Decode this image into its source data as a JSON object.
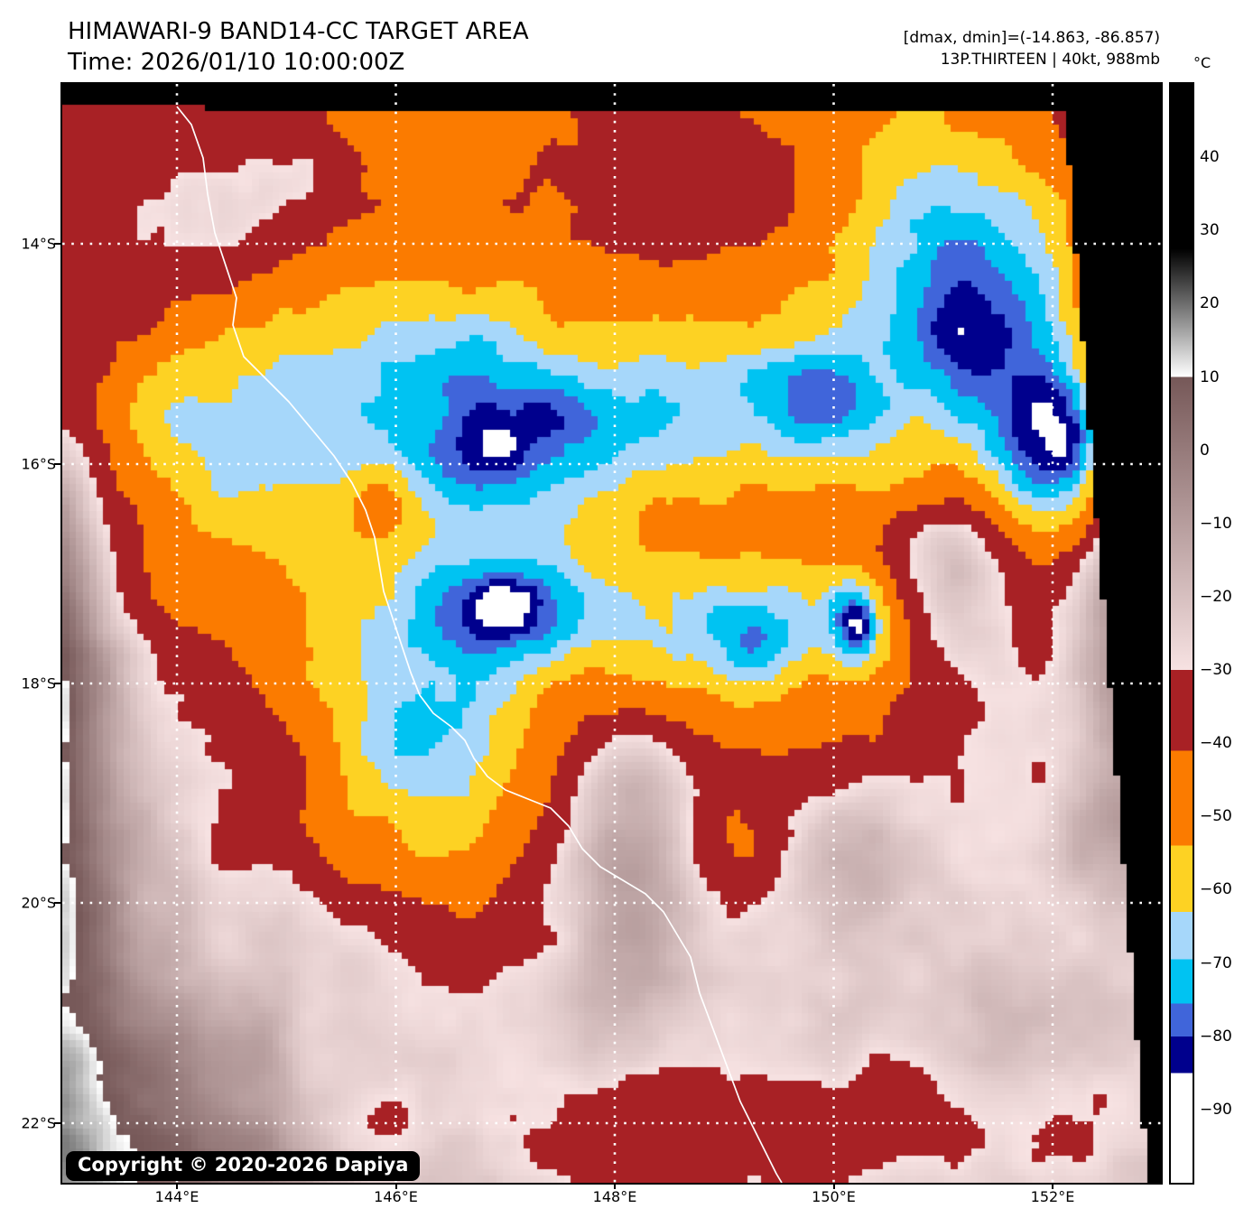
{
  "header": {
    "title": "HIMAWARI-9 BAND14-CC TARGET AREA",
    "subtitle": "Time: 2026/01/10 10:00:00Z",
    "annotation_line1": "[dmax, dmin]=(-14.863, -86.857)",
    "annotation_line2": "13P.THIRTEEN | 40kt, 988mb"
  },
  "colorbar": {
    "unit": "°C",
    "vmax": 50,
    "vmin": -100,
    "tick_values": [
      40,
      30,
      20,
      10,
      0,
      -10,
      -20,
      -30,
      -40,
      -50,
      -60,
      -70,
      -80,
      -90
    ],
    "tick_labels": [
      "40",
      "30",
      "20",
      "10",
      "0",
      "−10",
      "−20",
      "−30",
      "−40",
      "−50",
      "−60",
      "−70",
      "−80",
      "−90"
    ],
    "segments": [
      {
        "from": 50,
        "to": 27.5,
        "color": "#000000",
        "label": "hot-black"
      },
      {
        "from": 27.5,
        "to": 10,
        "color_start": "#000000",
        "color_end": "#ffffff",
        "label": "gray-ramp"
      },
      {
        "from": 10,
        "to": -30,
        "color_start": "#765858",
        "color_end": "#f7e2e2",
        "label": "mauve-ramp"
      },
      {
        "from": -30,
        "to": -41,
        "color": "#a82125",
        "label": "dark-red"
      },
      {
        "from": -41,
        "to": -54,
        "color": "#fb7b00",
        "label": "orange"
      },
      {
        "from": -54,
        "to": -63,
        "color": "#fdd223",
        "label": "yellow"
      },
      {
        "from": -63,
        "to": -69.5,
        "color": "#a6d7fa",
        "label": "light-blue"
      },
      {
        "from": -69.5,
        "to": -75.5,
        "color": "#00c3f2",
        "label": "cyan"
      },
      {
        "from": -75.5,
        "to": -80,
        "color": "#4065da",
        "label": "royal-blue"
      },
      {
        "from": -80,
        "to": -85,
        "color": "#00008d",
        "label": "navy"
      },
      {
        "from": -85,
        "to": -100,
        "color": "#ffffff",
        "label": "cold-white"
      }
    ]
  },
  "axes": {
    "lat_tick_labels": [
      "14°S",
      "16°S",
      "18°S",
      "20°S",
      "22°S"
    ],
    "lon_tick_labels": [
      "144°E",
      "146°E",
      "148°E",
      "150°E",
      "152°E"
    ]
  },
  "map": {
    "copyright": "Copyright © 2020-2026 Dapiya",
    "gridline_color": "#ffffff",
    "coastline_color": "#ffffff",
    "outside_swath_color": "#000000"
  }
}
